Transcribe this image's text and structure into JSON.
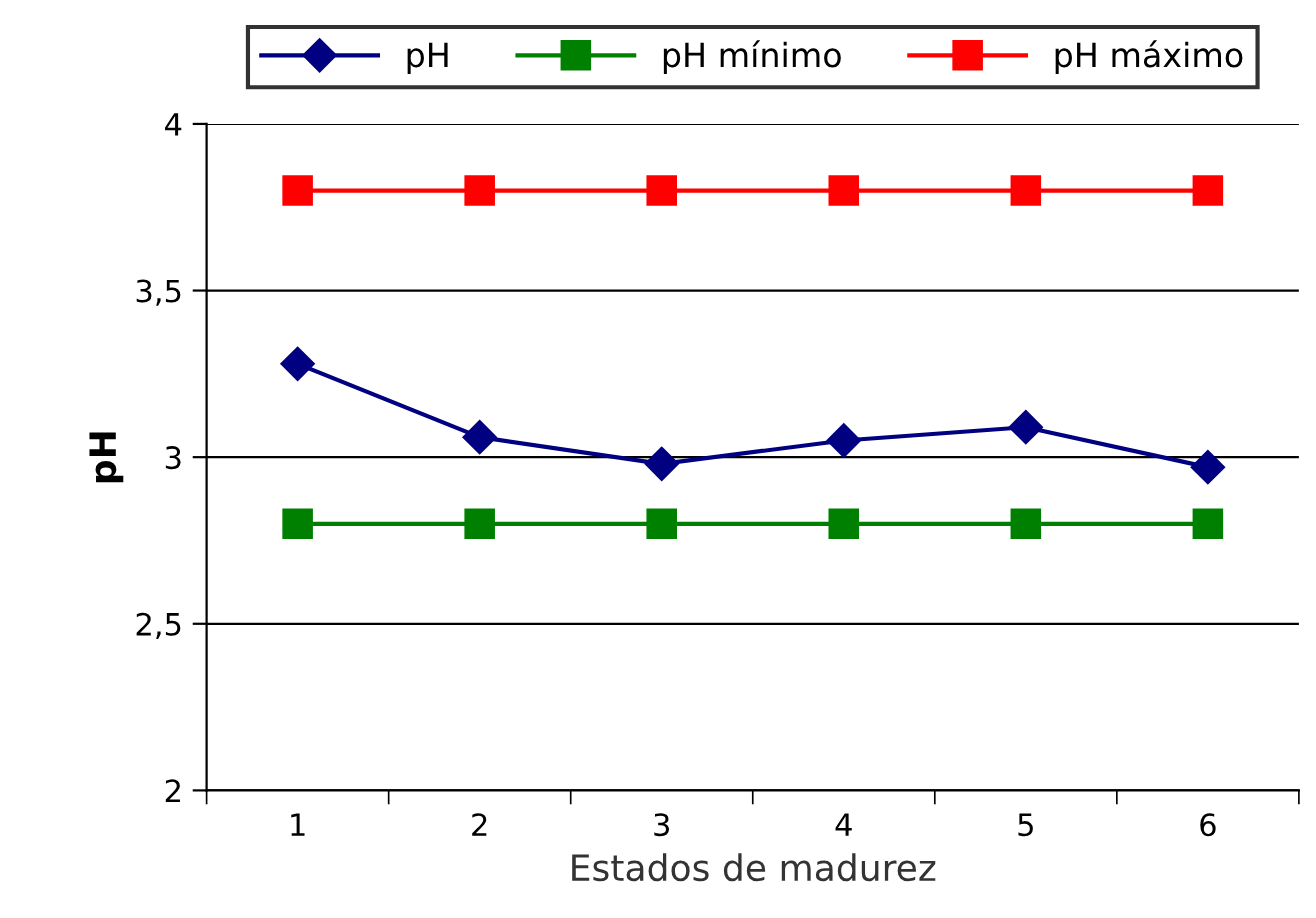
{
  "chart_data": {
    "type": "line",
    "xlabel": "Estados de madurez",
    "ylabel": "pH",
    "categories": [
      "1",
      "2",
      "3",
      "4",
      "5",
      "6"
    ],
    "series": [
      {
        "name": "pH",
        "color": "#000080",
        "marker": "diamond",
        "values": [
          3.28,
          3.06,
          2.98,
          3.05,
          3.09,
          2.97
        ]
      },
      {
        "name": "pH mínimo",
        "color": "#008000",
        "marker": "square",
        "values": [
          2.8,
          2.8,
          2.8,
          2.8,
          2.8,
          2.8
        ]
      },
      {
        "name": "pH máximo",
        "color": "#ff0000",
        "marker": "square",
        "values": [
          3.8,
          3.8,
          3.8,
          3.8,
          3.8,
          3.8
        ]
      }
    ],
    "ylim": [
      2,
      4
    ],
    "yticks": [
      2,
      {
        "value": 2.5,
        "label": "2,5"
      },
      3,
      {
        "value": 3.5,
        "label": "3,5"
      },
      4
    ],
    "grid": "y",
    "legend": "top",
    "line_style": "solid"
  }
}
